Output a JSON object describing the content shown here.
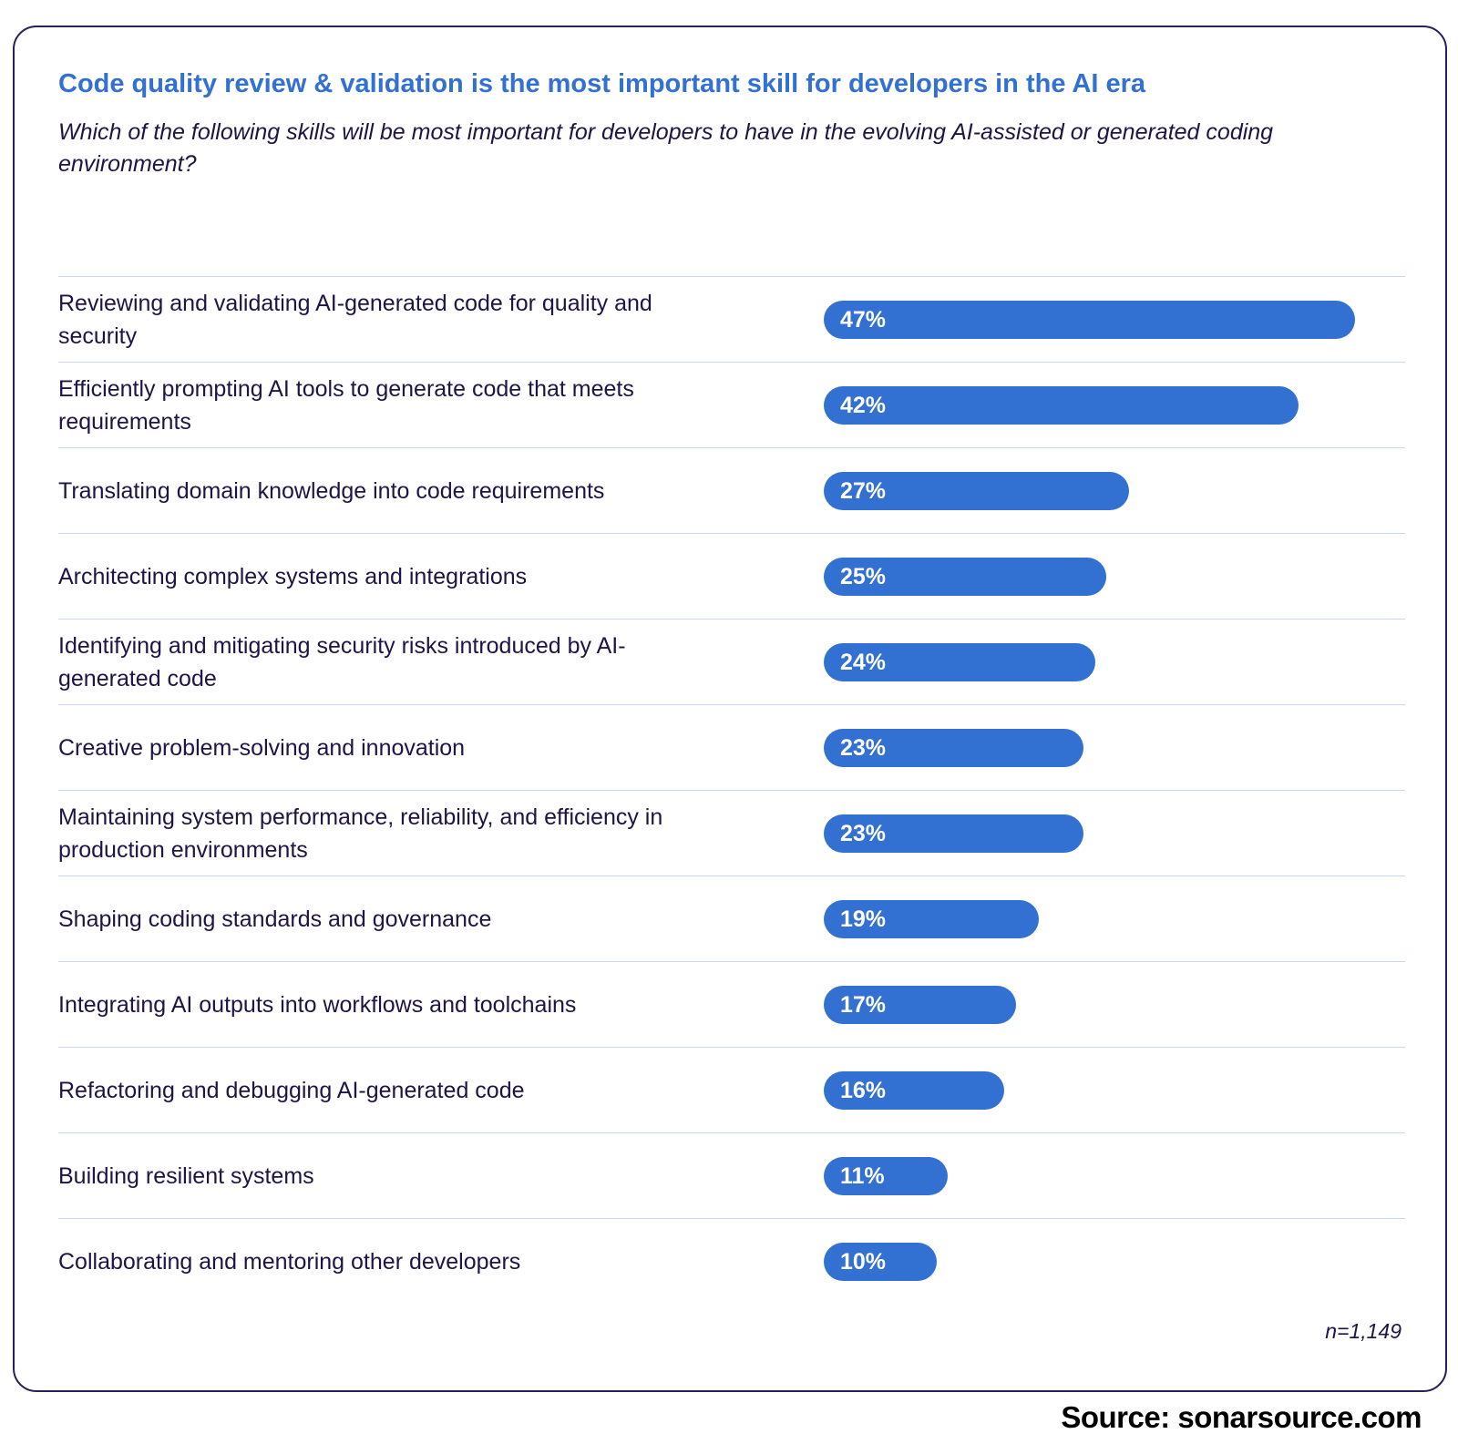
{
  "chart_data": {
    "type": "bar",
    "orientation": "horizontal",
    "title": "Code quality review & validation is the most important skill for developers in the AI era",
    "subtitle": "Which of the following skills will be most important for developers to have in the evolving AI-assisted or generated coding environment?",
    "categories": [
      "Reviewing and validating AI-generated code for quality and security",
      "Efficiently prompting AI tools to generate code that meets requirements",
      "Translating domain knowledge into code requirements",
      "Architecting complex systems and integrations",
      "Identifying and mitigating security risks introduced by AI-generated code",
      "Creative problem-solving and innovation",
      "Maintaining system performance, reliability, and efficiency in production environments",
      "Shaping coding standards and governance",
      "Integrating AI outputs into workflows and toolchains",
      "Refactoring and debugging AI-generated code",
      "Building resilient systems",
      "Collaborating and mentoring other developers"
    ],
    "values": [
      47,
      42,
      27,
      25,
      24,
      23,
      23,
      19,
      17,
      16,
      11,
      10
    ],
    "value_labels": [
      "47%",
      "42%",
      "27%",
      "25%",
      "24%",
      "23%",
      "23%",
      "19%",
      "17%",
      "16%",
      "11%",
      "10%"
    ],
    "xlim": [
      0,
      50
    ],
    "grid": false,
    "legend": "none",
    "bar_color": "#3270d2",
    "title_color": "#3270d2",
    "note": "n=1,149"
  },
  "footer": {
    "source": "Source: sonarsource.com"
  }
}
